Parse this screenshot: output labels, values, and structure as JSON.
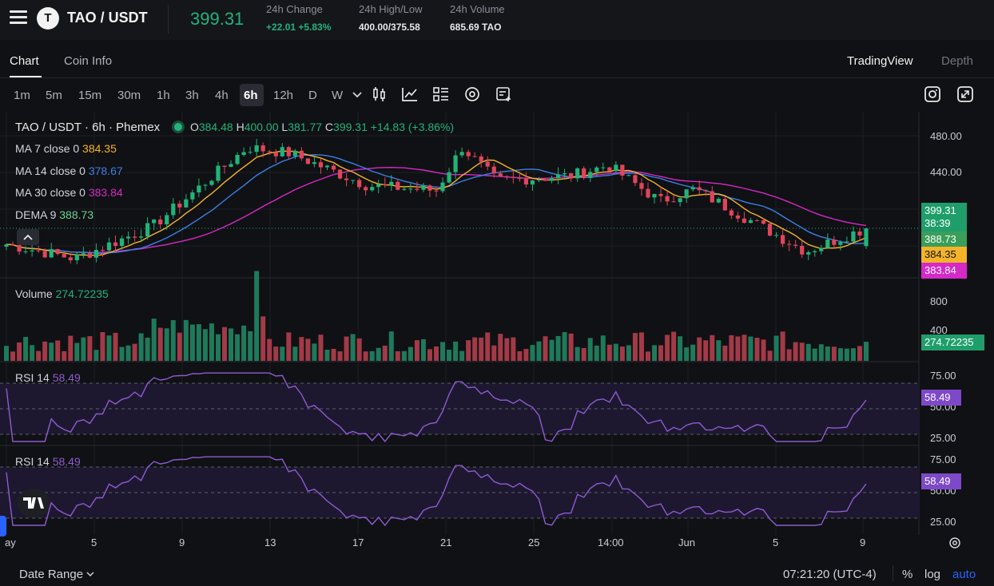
{
  "header": {
    "logo_letter": "T",
    "pair": "TAO / USDT",
    "price": "399.31",
    "stats": [
      {
        "label": "24h Change",
        "value": "+22.01 +5.83%"
      },
      {
        "label": "24h High/Low",
        "value": "400.00/375.58"
      },
      {
        "label": "24h Volume",
        "value": "685.69 TAO"
      }
    ]
  },
  "tabs": {
    "chart": "Chart",
    "coin_info": "Coin Info",
    "tradingview": "TradingView",
    "depth": "Depth"
  },
  "timeframes": [
    "1m",
    "5m",
    "15m",
    "30m",
    "1h",
    "3h",
    "4h",
    "6h",
    "12h",
    "D",
    "W"
  ],
  "active_timeframe": "6h",
  "legend": {
    "symbol": "TAO / USDT · 6h · Phemex",
    "ohlc_o_label": "O",
    "ohlc_o": "384.48",
    "ohlc_h_label": "H",
    "ohlc_h": "400.00",
    "ohlc_l_label": "L",
    "ohlc_l": "381.77",
    "ohlc_c_label": "C",
    "ohlc_c": "399.31",
    "ohlc_change": "+14.83 (+3.86%)",
    "ma7_label": "MA 7 close 0",
    "ma7_value": "384.35",
    "ma14_label": "MA 14 close 0",
    "ma14_value": "378.67",
    "ma30_label": "MA 30 close 0",
    "ma30_value": "383.84",
    "dema_label": "DEMA 9",
    "dema_value": "388.73",
    "volume_label": "Volume",
    "volume_value": "274.72235",
    "rsi1_label": "RSI 14",
    "rsi1_value": "58.49",
    "rsi2_label": "RSI 14",
    "rsi2_value": "58.49"
  },
  "price_axis": {
    "ticks": [
      "480.00",
      "440.00"
    ],
    "current_price": "399.31",
    "countdown": "38:39",
    "dema_tag": "388.73",
    "ma7_tag": "384.35",
    "ma30_tag": "383.84",
    "volume_ticks": [
      "800",
      "400"
    ],
    "volume_tag": "274.72235",
    "rsi1_ticks": [
      "75.00",
      "50.00",
      "25.00"
    ],
    "rsi1_tag": "58.49",
    "rsi2_ticks": [
      "75.00",
      "50.00",
      "25.00"
    ],
    "rsi2_tag": "58.49"
  },
  "time_axis": [
    "ay",
    "5",
    "9",
    "13",
    "17",
    "21",
    "25",
    "14:00",
    "Jun",
    "5",
    "9"
  ],
  "footer": {
    "date_range": "Date Range",
    "clock": "07:21:20 (UTC-4)",
    "percent": "%",
    "log": "log",
    "auto": "auto"
  },
  "colors": {
    "up": "#22b37a",
    "down": "#e0455a",
    "ma7": "#f5b428",
    "ma14": "#3d7fe6",
    "ma30": "#d629c7",
    "dema": "#6bd394",
    "rsi": "#8e5bd1"
  }
}
